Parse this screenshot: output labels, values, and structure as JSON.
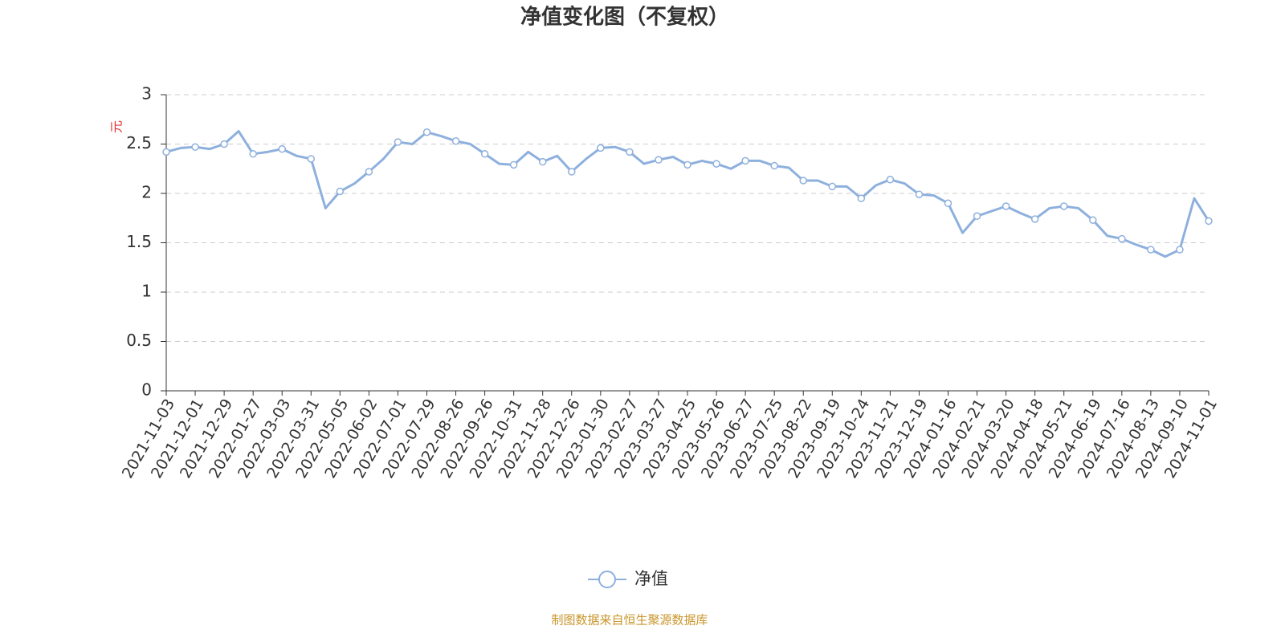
{
  "chart_data": {
    "type": "line",
    "title": "净值变化图（不复权）",
    "y_label": "元",
    "source": "制图数据来自恒生聚源数据库",
    "categories": [
      "2021-11-03",
      null,
      "2021-12-01",
      null,
      "2021-12-29",
      null,
      "2022-01-27",
      null,
      "2022-03-03",
      null,
      "2022-03-31",
      null,
      "2022-05-05",
      null,
      "2022-06-02",
      null,
      "2022-07-01",
      null,
      "2022-07-29",
      null,
      "2022-08-26",
      null,
      "2022-09-26",
      null,
      "2022-10-31",
      null,
      "2022-11-28",
      null,
      "2022-12-26",
      null,
      "2023-01-30",
      null,
      "2023-02-27",
      null,
      "2023-03-27",
      null,
      "2023-04-25",
      null,
      "2023-05-26",
      null,
      "2023-06-27",
      null,
      "2023-07-25",
      null,
      "2023-08-22",
      null,
      "2023-09-19",
      null,
      "2023-10-24",
      null,
      "2023-11-21",
      null,
      "2023-12-19",
      null,
      "2024-01-16",
      null,
      "2024-02-21",
      null,
      "2024-03-20",
      null,
      "2024-04-18",
      null,
      "2024-05-21",
      null,
      "2024-06-19",
      null,
      "2024-07-16",
      null,
      "2024-08-13",
      null,
      "2024-09-10",
      null,
      "2024-11-01"
    ],
    "series": [
      {
        "name": "净值",
        "color": "#8eb0dd",
        "values": [
          2.42,
          2.46,
          2.47,
          2.45,
          2.5,
          2.63,
          2.4,
          2.42,
          2.45,
          2.38,
          2.35,
          1.85,
          2.02,
          2.1,
          2.22,
          2.35,
          2.52,
          2.5,
          2.62,
          2.58,
          2.53,
          2.5,
          2.4,
          2.3,
          2.29,
          2.42,
          2.32,
          2.38,
          2.22,
          2.35,
          2.46,
          2.47,
          2.42,
          2.3,
          2.34,
          2.37,
          2.29,
          2.33,
          2.3,
          2.25,
          2.33,
          2.33,
          2.28,
          2.26,
          2.13,
          2.13,
          2.07,
          2.07,
          1.95,
          2.08,
          2.14,
          2.1,
          1.99,
          1.98,
          1.9,
          1.6,
          1.77,
          1.82,
          1.87,
          1.8,
          1.74,
          1.85,
          1.87,
          1.85,
          1.73,
          1.57,
          1.54,
          1.48,
          1.43,
          1.36,
          1.43,
          1.95,
          1.72
        ]
      }
    ],
    "ylim": [
      0,
      3
    ],
    "yticks": [
      0,
      0.5,
      1,
      1.5,
      2,
      2.5,
      3
    ],
    "grid": true
  }
}
